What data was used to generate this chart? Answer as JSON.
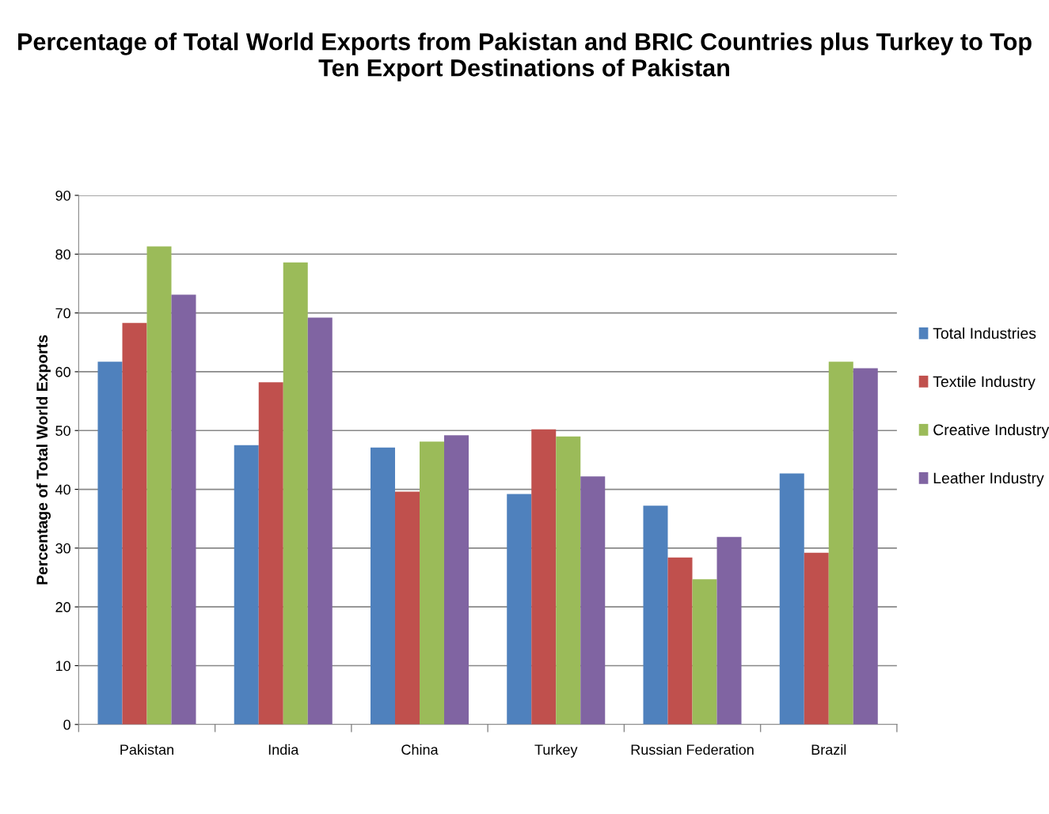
{
  "chart_data": {
    "type": "bar",
    "title": "Percentage of Total World Exports from Pakistan and BRIC Countries plus Turkey to Top Ten Export Destinations of Pakistan",
    "ylabel": "Percentage of Total World Exports",
    "categories": [
      "Pakistan",
      "India",
      "China",
      "Turkey",
      "Russian Federation",
      "Brazil"
    ],
    "series": [
      {
        "name": "Total Industries",
        "color": "#4f81bd",
        "values": [
          61.7,
          47.5,
          47.1,
          39.2,
          37.2,
          42.7
        ]
      },
      {
        "name": "Textile Industry",
        "color": "#c0504d",
        "values": [
          68.3,
          58.2,
          39.6,
          50.2,
          28.4,
          29.2
        ]
      },
      {
        "name": "Creative Industry",
        "color": "#9bbb59",
        "values": [
          81.3,
          78.6,
          48.1,
          49.0,
          24.7,
          61.7
        ]
      },
      {
        "name": "Leather Industry",
        "color": "#8064a2",
        "values": [
          73.1,
          69.2,
          49.2,
          42.2,
          31.9,
          60.6
        ]
      }
    ],
    "ylim": [
      0,
      90
    ],
    "yticks": [
      0,
      10,
      20,
      30,
      40,
      50,
      60,
      70,
      80,
      90
    ],
    "grid": "y",
    "legend": "right"
  }
}
